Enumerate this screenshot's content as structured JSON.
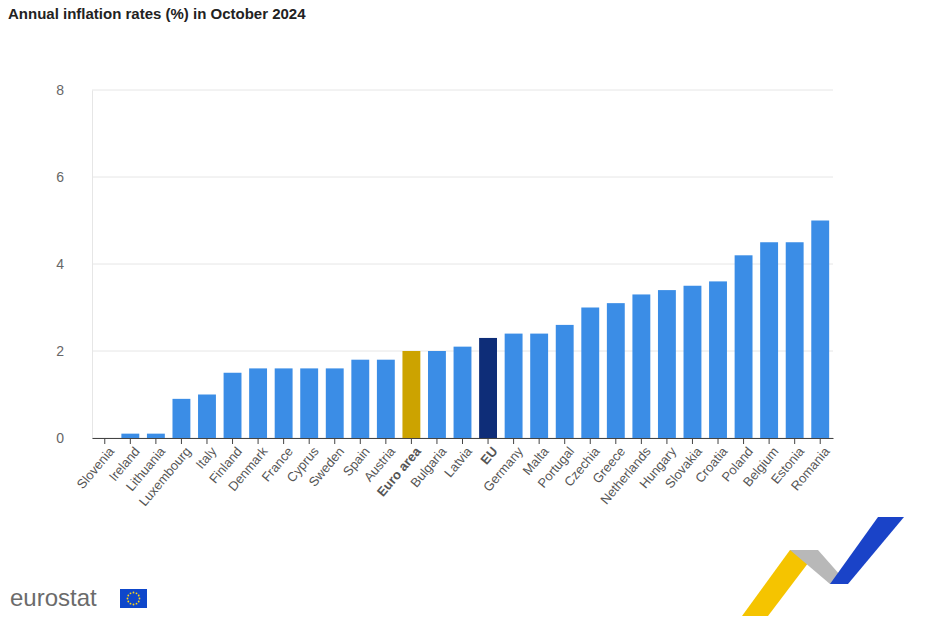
{
  "chart_data": {
    "type": "bar",
    "title": "Annual inflation rates (%) in October 2024",
    "source": "eurostat",
    "categories": [
      "Slovenia",
      "Ireland",
      "Lithuania",
      "Luxembourg",
      "Italy",
      "Finland",
      "Denmark",
      "France",
      "Cyprus",
      "Sweden",
      "Spain",
      "Austria",
      "Euro area",
      "Bulgaria",
      "Latvia",
      "EU",
      "Germany",
      "Malta",
      "Portugal",
      "Czechia",
      "Greece",
      "Netherlands",
      "Hungary",
      "Slovakia",
      "Croatia",
      "Poland",
      "Belgium",
      "Estonia",
      "Romania"
    ],
    "values": [
      0.0,
      0.1,
      0.1,
      0.9,
      1.0,
      1.5,
      1.6,
      1.6,
      1.6,
      1.6,
      1.8,
      1.8,
      2.0,
      2.0,
      2.1,
      2.3,
      2.4,
      2.4,
      2.6,
      3.0,
      3.1,
      3.3,
      3.4,
      3.5,
      3.6,
      4.2,
      4.5,
      4.5,
      5.0
    ],
    "colors": [
      "#3b8de6",
      "#3b8de6",
      "#3b8de6",
      "#3b8de6",
      "#3b8de6",
      "#3b8de6",
      "#3b8de6",
      "#3b8de6",
      "#3b8de6",
      "#3b8de6",
      "#3b8de6",
      "#3b8de6",
      "#cca300",
      "#3b8de6",
      "#3b8de6",
      "#0e2d78",
      "#3b8de6",
      "#3b8de6",
      "#3b8de6",
      "#3b8de6",
      "#3b8de6",
      "#3b8de6",
      "#3b8de6",
      "#3b8de6",
      "#3b8de6",
      "#3b8de6",
      "#3b8de6",
      "#3b8de6",
      "#3b8de6"
    ],
    "ylim": [
      0,
      8
    ],
    "yticks": [
      0,
      2,
      4,
      6,
      8
    ],
    "grid": true
  }
}
